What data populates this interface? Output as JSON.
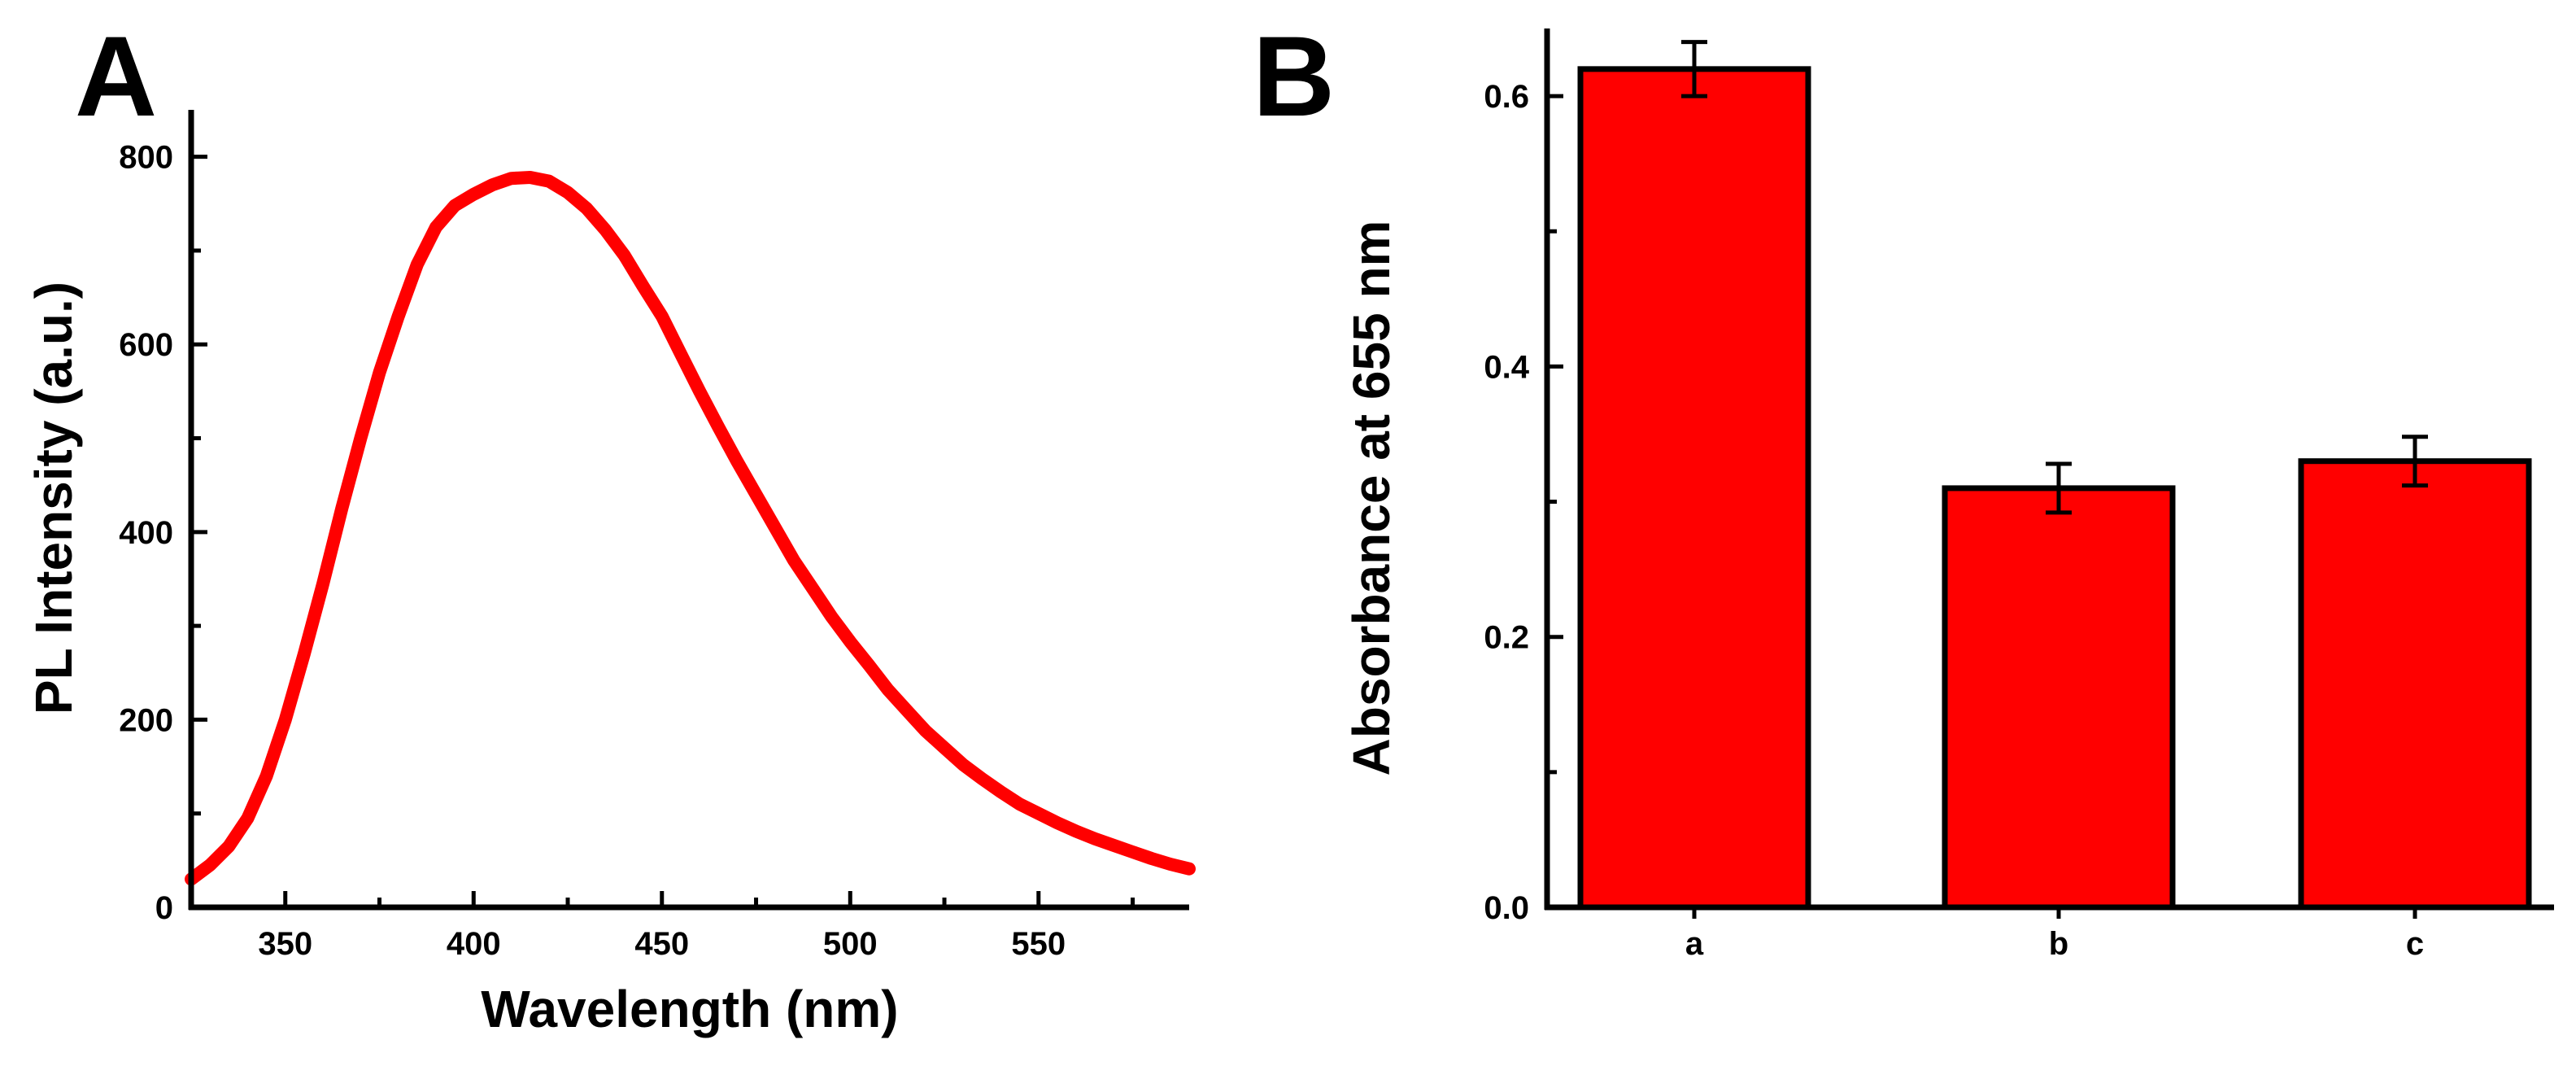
{
  "chart_data": [
    {
      "panel": "A",
      "type": "line",
      "xlabel": "Wavelength (nm)",
      "ylabel": "PL Intensity (a.u.)",
      "xlim": [
        325,
        590
      ],
      "ylim": [
        0,
        850
      ],
      "xticks": [
        350,
        400,
        450,
        500,
        550
      ],
      "yticks": [
        0,
        200,
        400,
        600,
        800
      ],
      "series": [
        {
          "name": "PL",
          "color": "#ff0000",
          "x": [
            325,
            330,
            335,
            340,
            345,
            350,
            355,
            360,
            365,
            370,
            375,
            380,
            385,
            390,
            395,
            400,
            405,
            410,
            415,
            420,
            425,
            430,
            435,
            440,
            445,
            450,
            455,
            460,
            465,
            470,
            475,
            480,
            485,
            490,
            495,
            500,
            505,
            510,
            515,
            520,
            525,
            530,
            535,
            540,
            545,
            550,
            555,
            560,
            565,
            570,
            575,
            580,
            585,
            590
          ],
          "y": [
            30,
            45,
            65,
            95,
            140,
            200,
            270,
            345,
            425,
            500,
            570,
            630,
            685,
            725,
            748,
            760,
            770,
            777,
            778,
            774,
            762,
            745,
            722,
            695,
            662,
            630,
            590,
            550,
            512,
            475,
            440,
            405,
            370,
            340,
            310,
            283,
            258,
            232,
            210,
            188,
            170,
            152,
            137,
            123,
            110,
            100,
            90,
            81,
            73,
            66,
            59,
            52,
            46,
            41
          ]
        }
      ]
    },
    {
      "panel": "B",
      "type": "bar",
      "xlabel": "",
      "ylabel": "Absorbance at 655 nm",
      "ylim": [
        0,
        0.65
      ],
      "yticks": [
        0.0,
        0.2,
        0.4,
        0.6
      ],
      "ytick_labels": [
        "0.0",
        "0.2",
        "0.4",
        "0.6"
      ],
      "categories": [
        "a",
        "b",
        "c"
      ],
      "values": [
        0.62,
        0.31,
        0.33
      ],
      "errors": [
        0.02,
        0.018,
        0.018
      ],
      "color": "#ff0000"
    }
  ]
}
